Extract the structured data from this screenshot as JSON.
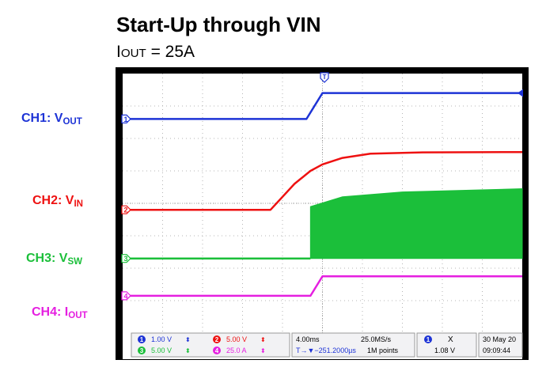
{
  "title": "Start-Up through VIN",
  "subtitle": {
    "prefix": "I",
    "sub": "OUT",
    "suffix": " = 25A"
  },
  "channels": [
    {
      "id": "ch1",
      "label": "CH1: V",
      "sub": "OUT",
      "color": "#1d33d6"
    },
    {
      "id": "ch2",
      "label": "CH2: V",
      "sub": "IN",
      "color": "#ee1111"
    },
    {
      "id": "ch3",
      "label": "CH3: V",
      "sub": "SW",
      "color": "#1bbf3a"
    },
    {
      "id": "ch4",
      "label": "CH4: I",
      "sub": "OUT",
      "color": "#e51fe0"
    }
  ],
  "markers": [
    "1",
    "2",
    "3",
    "4",
    "T"
  ],
  "status": {
    "ch1_scale": "1.00 V",
    "ch2_scale": "5.00 V",
    "ch3_scale": "5.00 V",
    "ch4_scale": "25.0 A",
    "timebase": "4.00ms",
    "sample_rate": "25.0MS/s",
    "trigger_pos": "T→▼−251.2000µs",
    "record_length": "1M points",
    "trigger_source": "1",
    "trigger_type": "X",
    "trigger_level": "1.08 V",
    "date": "30 May 20",
    "time": "09:09:44"
  },
  "chart_data": {
    "type": "line",
    "xlabel": "",
    "ylabel": "",
    "grid": true,
    "x_units": "divisions",
    "y_units": "divisions",
    "xlim": [
      0,
      10
    ],
    "ylim": [
      0,
      8
    ],
    "series": [
      {
        "name": "CH1: VOUT",
        "points": [
          [
            0,
            6.6
          ],
          [
            4.6,
            6.6
          ],
          [
            5.0,
            7.4
          ],
          [
            10,
            7.4
          ]
        ]
      },
      {
        "name": "CH2: VIN",
        "points": [
          [
            0,
            3.8
          ],
          [
            3.7,
            3.8
          ],
          [
            4.0,
            4.2
          ],
          [
            4.3,
            4.6
          ],
          [
            4.7,
            5.0
          ],
          [
            5.0,
            5.2
          ],
          [
            5.5,
            5.4
          ],
          [
            6.2,
            5.53
          ],
          [
            7.5,
            5.57
          ],
          [
            10,
            5.58
          ]
        ]
      },
      {
        "name": "CH3: VSW",
        "points": [
          [
            0,
            2.3
          ],
          [
            4.7,
            2.3
          ],
          [
            4.7,
            3.9
          ],
          [
            5.5,
            4.2
          ],
          [
            7.0,
            4.35
          ],
          [
            10,
            4.45
          ]
        ]
      },
      {
        "name": "CH4: IOUT",
        "points": [
          [
            0,
            1.15
          ],
          [
            4.7,
            1.15
          ],
          [
            5.0,
            1.75
          ],
          [
            10,
            1.75
          ]
        ]
      }
    ]
  }
}
